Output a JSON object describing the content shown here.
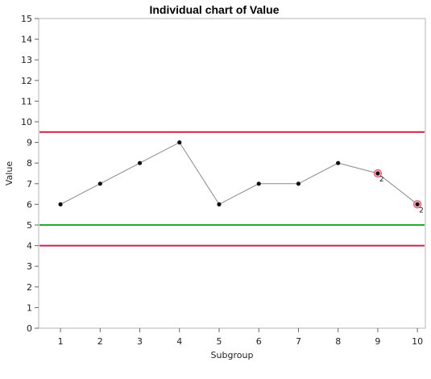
{
  "chart_data": {
    "type": "line",
    "title": "Individual chart of Value",
    "xlabel": "Subgroup",
    "ylabel": "Value",
    "xlim": [
      0.45,
      10.2
    ],
    "ylim": [
      0,
      15
    ],
    "x_ticks": [
      1,
      2,
      3,
      4,
      5,
      6,
      7,
      8,
      9,
      10
    ],
    "y_ticks": [
      0,
      1,
      2,
      3,
      4,
      5,
      6,
      7,
      8,
      9,
      10,
      11,
      12,
      13,
      14,
      15
    ],
    "grid": false,
    "x": [
      1,
      2,
      3,
      4,
      5,
      6,
      7,
      8,
      9,
      10
    ],
    "values": [
      6,
      7,
      8,
      9,
      6,
      7,
      7,
      8,
      7.5,
      6
    ],
    "series_color": "#888888",
    "point_color": "#111111",
    "flagged_points": [
      {
        "x": 9,
        "y": 7.5,
        "label": "2"
      },
      {
        "x": 10,
        "y": 6,
        "label": "2"
      }
    ],
    "flag_color": "#e0506a",
    "control_limits": [
      {
        "value": 9.5,
        "color": "#cc2244"
      },
      {
        "value": 5,
        "color": "#22aa33"
      },
      {
        "value": 4,
        "color": "#cc2244"
      }
    ]
  }
}
